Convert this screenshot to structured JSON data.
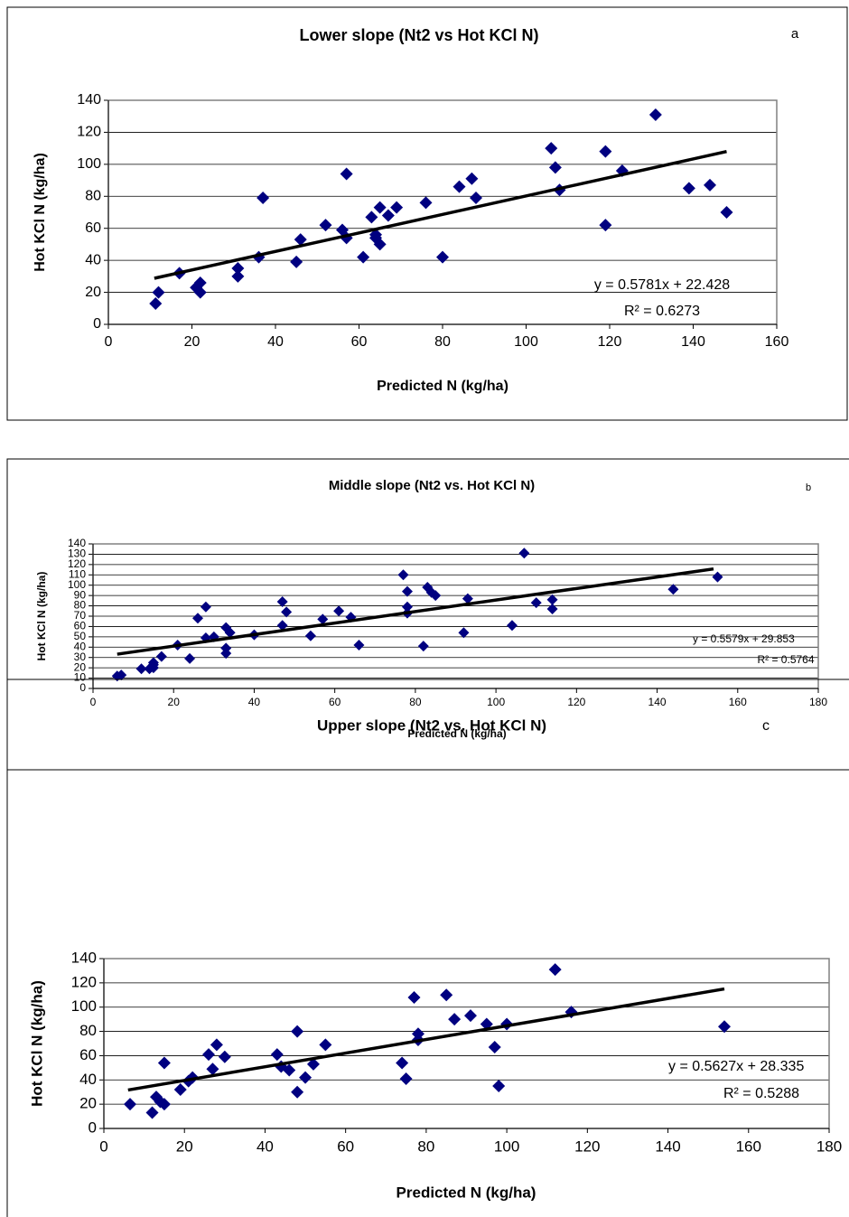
{
  "chart_data": [
    {
      "type": "scatter",
      "title": "Lower slope (Nt2 vs Hot KCl N)",
      "panel_label": "a",
      "x_label": "Predicted N (kg/ha)",
      "y_label": "Hot KCl N (kg/ha)",
      "x": [
        11.3,
        12,
        17,
        21,
        22,
        22,
        31,
        31,
        36,
        37,
        45,
        46,
        52,
        56,
        57,
        57,
        61,
        63,
        64,
        64,
        65,
        65,
        67,
        69,
        76,
        80,
        84,
        87,
        88,
        106,
        107,
        108,
        119,
        119,
        123,
        131,
        139,
        144,
        148
      ],
      "series": [
        {
          "name": "Hot KCl N",
          "color": "#000080",
          "values": [
            13,
            20,
            32,
            23,
            26,
            20,
            35,
            30,
            42,
            79,
            39,
            53,
            62,
            59,
            54,
            94,
            42,
            67,
            54,
            56,
            50,
            73,
            68,
            73,
            76,
            42,
            86,
            91,
            79,
            110,
            98,
            84,
            108,
            62,
            96,
            131,
            85,
            87,
            70
          ]
        }
      ],
      "xlim": [
        0,
        160
      ],
      "xticks": [
        0,
        20,
        40,
        60,
        80,
        100,
        120,
        140,
        160
      ],
      "ylim": [
        0,
        140
      ],
      "yticks": [
        0,
        20,
        40,
        60,
        80,
        100,
        120,
        140
      ],
      "grid": true,
      "trendline": {
        "equation": "y = 0.5781x + 22.428",
        "r_squared": "R² = 0.6273",
        "slope": 0.5781,
        "intercept": 22.428,
        "x_range": [
          11,
          148
        ]
      }
    },
    {
      "type": "scatter",
      "title": "Middle slope (Nt2 vs. Hot KCl N)",
      "panel_label": "b",
      "x_label": "Predicted N (kg/ha)",
      "y_label": "Hot KCl N (kg/ha)",
      "x": [
        6,
        7,
        12,
        14,
        15,
        15,
        15,
        17,
        21,
        24,
        26,
        28,
        28,
        30,
        33,
        33,
        33,
        34,
        40,
        47,
        47,
        48,
        54,
        57,
        61,
        64,
        66,
        77,
        78,
        78,
        78,
        82,
        83,
        84,
        85,
        92,
        93,
        104,
        107,
        110,
        114,
        114,
        144,
        155
      ],
      "series": [
        {
          "name": "Hot KCl N",
          "color": "#000080",
          "values": [
            12,
            13,
            19,
            19,
            25,
            23,
            20,
            31,
            42,
            29,
            68,
            79,
            49,
            50,
            59,
            39,
            34,
            54,
            52,
            61,
            84,
            74,
            51,
            67,
            75,
            69,
            42,
            110,
            79,
            94,
            73,
            41,
            98,
            93,
            90,
            54,
            87,
            61,
            131,
            83,
            86,
            77,
            96,
            108
          ]
        }
      ],
      "xlim": [
        0,
        180
      ],
      "xticks": [
        0,
        20,
        40,
        60,
        80,
        100,
        120,
        140,
        160,
        180
      ],
      "ylim": [
        0,
        140
      ],
      "yticks": [
        0,
        10,
        20,
        30,
        40,
        50,
        60,
        70,
        80,
        90,
        100,
        110,
        120,
        130,
        140
      ],
      "grid": true,
      "trendline": {
        "equation": "y = 0.5579x + 29.853",
        "r_squared": "R² = 0.5764",
        "slope": 0.5579,
        "intercept": 29.853,
        "x_range": [
          6,
          154
        ]
      }
    },
    {
      "type": "scatter",
      "title": "Upper slope (Nt2 vs. Hot KCl N)",
      "panel_label": "c",
      "x_label": "Predicted N (kg/ha)",
      "y_label": "Hot KCl N (kg/ha)",
      "x": [
        6.5,
        12,
        13,
        14,
        15,
        15,
        19,
        21,
        22,
        26,
        27,
        28,
        30,
        43,
        44,
        46,
        48,
        48,
        50,
        52,
        55,
        74,
        75,
        77,
        78,
        78,
        85,
        87,
        91,
        95,
        100,
        97,
        98,
        112,
        116,
        154
      ],
      "series": [
        {
          "name": "Hot KCl N",
          "color": "#000080",
          "values": [
            20,
            13,
            26,
            22,
            20,
            54,
            32,
            39,
            42,
            61,
            49,
            69,
            59,
            61,
            51,
            48,
            30,
            80,
            42,
            53,
            69,
            54,
            41,
            108,
            78,
            73,
            110,
            90,
            93,
            86,
            86,
            67,
            35,
            131,
            96,
            84
          ]
        }
      ],
      "xlim": [
        0,
        180
      ],
      "xticks": [
        0,
        20,
        40,
        60,
        80,
        100,
        120,
        140,
        160,
        180
      ],
      "ylim": [
        0,
        140
      ],
      "yticks": [
        0,
        20,
        40,
        60,
        80,
        100,
        120,
        140
      ],
      "grid": true,
      "trendline": {
        "equation": "y = 0.5627x + 28.335",
        "r_squared": "R² = 0.5288",
        "slope": 0.5627,
        "intercept": 28.335,
        "x_range": [
          6,
          154
        ]
      }
    }
  ]
}
